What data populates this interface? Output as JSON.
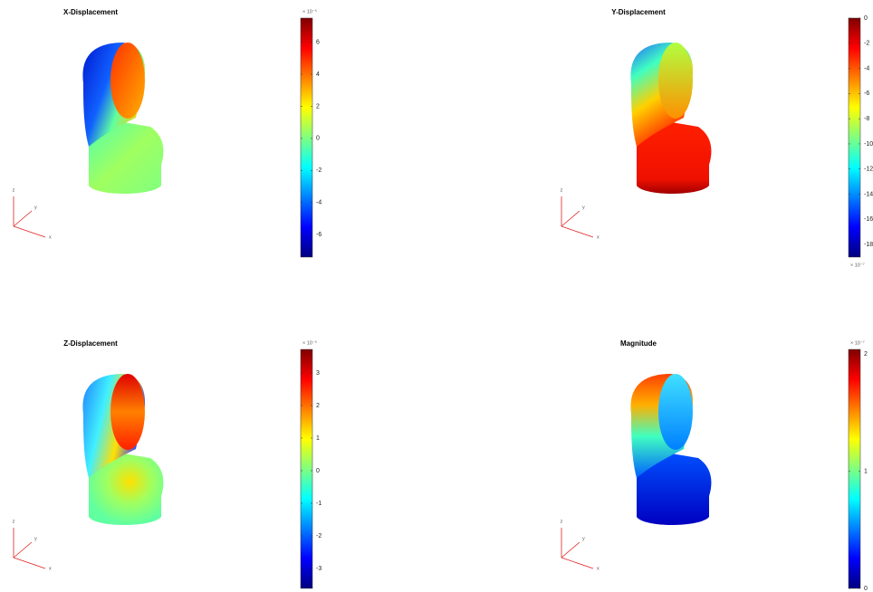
{
  "chart_data": [
    {
      "type": "surface",
      "title": "X-Displacement",
      "colormap": "jet",
      "clim": [
        -7.4,
        7.5
      ],
      "cticks": [
        -6,
        -4,
        -2,
        0,
        2,
        4,
        6
      ],
      "exponent_label": "× 10⁻⁵",
      "exponent_position": "top",
      "axis_labels": [
        "x",
        "y",
        "z"
      ]
    },
    {
      "type": "surface",
      "title": "Y-Displacement",
      "colormap": "jet",
      "clim": [
        -19,
        0
      ],
      "cticks": [
        -18,
        -16,
        -14,
        -12,
        -10,
        -8,
        -6,
        -4,
        -2,
        0
      ],
      "exponent_label": "× 10⁻⁷",
      "exponent_position": "bottom",
      "axis_labels": [
        "x",
        "y",
        "z"
      ]
    },
    {
      "type": "surface",
      "title": "Z-Displacement",
      "colormap": "jet",
      "clim": [
        -3.61,
        3.72
      ],
      "cticks": [
        -3,
        -2,
        -1,
        0,
        1,
        2,
        3
      ],
      "exponent_label": "× 10⁻⁵",
      "exponent_position": "top",
      "axis_labels": [
        "x",
        "y",
        "z"
      ]
    },
    {
      "type": "surface",
      "title": "Magnitude",
      "colormap": "jet",
      "clim": [
        0,
        2.04
      ],
      "cticks": [
        0,
        1,
        2
      ],
      "exponent_label": "× 10⁻⁷",
      "exponent_position": "top",
      "axis_labels": [
        "x",
        "y",
        "z"
      ]
    }
  ]
}
